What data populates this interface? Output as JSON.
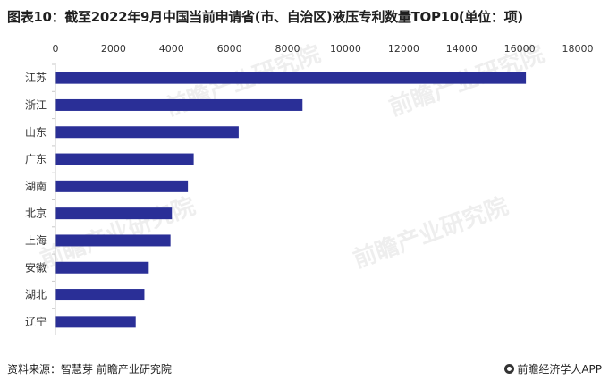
{
  "title": "图表10：截至2022年9月中国当前申请省(市、自治区)液压专利数量TOP10(单位：项)",
  "source": "资料来源：智慧芽 前瞻产业研究院",
  "brand": "前瞻经济学人APP",
  "watermark": "前瞻产业研究院",
  "colors": {
    "bar": "#2a2f97",
    "axis": "#c8c8c8",
    "text": "#333333"
  },
  "chart_data": {
    "type": "bar",
    "orientation": "horizontal",
    "categories": [
      "江苏",
      "浙江",
      "山东",
      "广东",
      "湖南",
      "北京",
      "上海",
      "安徽",
      "湖北",
      "辽宁"
    ],
    "values": [
      16200,
      8500,
      6300,
      4750,
      4550,
      4000,
      3950,
      3200,
      3050,
      2750
    ],
    "xticks": [
      "0",
      "2000",
      "4000",
      "6000",
      "8000",
      "10000",
      "12000",
      "14000",
      "16000",
      "18000"
    ],
    "xlim": [
      0,
      18000
    ],
    "xaxis_position": "top",
    "grid": false,
    "legend": "none"
  }
}
